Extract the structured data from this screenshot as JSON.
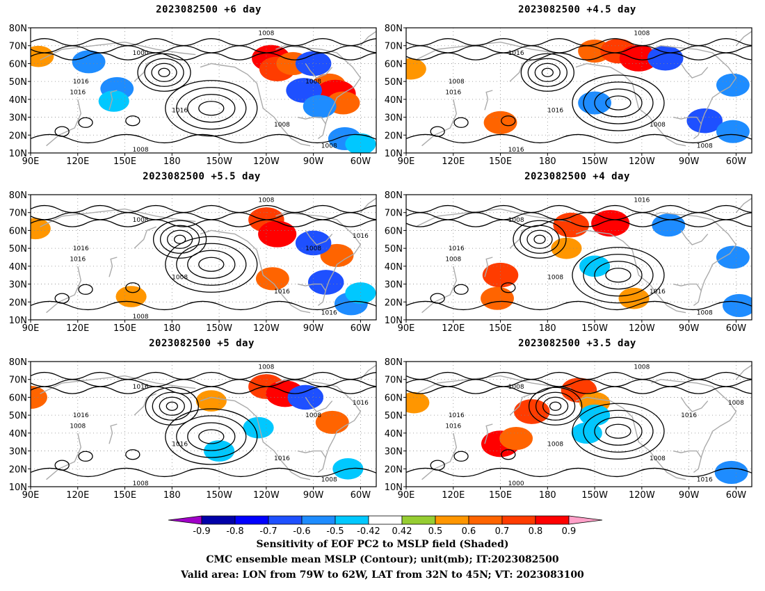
{
  "panels": [
    {
      "title": "2023082500  +6 day",
      "lead": "+6 day",
      "isobars": [
        "1008",
        "1000",
        "1016",
        "1016",
        "1016",
        "1008",
        "1008",
        "1008",
        "1008"
      ],
      "shading": [
        {
          "lon": -117,
          "lat": 63,
          "v": 0.8
        },
        {
          "lon": -113,
          "lat": 57,
          "v": 0.7
        },
        {
          "lon": -103,
          "lat": 60,
          "v": 0.6
        },
        {
          "lon": -80,
          "lat": 48,
          "v": 0.6
        },
        {
          "lon": -76,
          "lat": 43,
          "v": 0.9
        },
        {
          "lon": -71,
          "lat": 38,
          "v": 0.6
        },
        {
          "lon": -96,
          "lat": 45,
          "v": -0.7
        },
        {
          "lon": -90,
          "lat": 60,
          "v": -0.7
        },
        {
          "lon": -86,
          "lat": 36,
          "v": -0.6
        },
        {
          "lon": -70,
          "lat": 18,
          "v": -0.6
        },
        {
          "lon": -60,
          "lat": 15,
          "v": -0.5
        },
        {
          "lon": 145,
          "lat": 46,
          "v": -0.6
        },
        {
          "lon": 127,
          "lat": 61,
          "v": -0.6
        },
        {
          "lon": 143,
          "lat": 39,
          "v": -0.5
        },
        {
          "lon": 95,
          "lat": 64,
          "v": 0.5
        }
      ]
    },
    {
      "title": "2023082500  +4.5 day",
      "lead": "+4.5 day",
      "isobars": [
        "1008",
        "1016",
        "1008",
        "1016",
        "1016",
        "1008",
        "1008",
        "1016"
      ],
      "shading": [
        {
          "lon": -150,
          "lat": 67,
          "v": 0.6
        },
        {
          "lon": -135,
          "lat": 67,
          "v": 0.7
        },
        {
          "lon": -122,
          "lat": 63,
          "v": 0.8
        },
        {
          "lon": -105,
          "lat": 63,
          "v": -0.7
        },
        {
          "lon": 150,
          "lat": 27,
          "v": 0.6
        },
        {
          "lon": -150,
          "lat": 38,
          "v": -0.6
        },
        {
          "lon": -80,
          "lat": 28,
          "v": -0.7
        },
        {
          "lon": -62,
          "lat": 22,
          "v": -0.6
        },
        {
          "lon": -62,
          "lat": 48,
          "v": -0.6
        },
        {
          "lon": 93,
          "lat": 57,
          "v": 0.5
        }
      ]
    },
    {
      "title": "2023082500  +5.5 day",
      "lead": "+5.5 day",
      "isobars": [
        "1008",
        "1008",
        "1016",
        "1016",
        "1008",
        "1016",
        "1016",
        "1008",
        "1008",
        "1016"
      ],
      "shading": [
        {
          "lon": -120,
          "lat": 66,
          "v": 0.7
        },
        {
          "lon": -113,
          "lat": 58,
          "v": 0.8
        },
        {
          "lon": -75,
          "lat": 46,
          "v": 0.6
        },
        {
          "lon": -90,
          "lat": 53,
          "v": -0.7
        },
        {
          "lon": -82,
          "lat": 31,
          "v": -0.7
        },
        {
          "lon": -66,
          "lat": 19,
          "v": -0.6
        },
        {
          "lon": -60,
          "lat": 25,
          "v": -0.5
        },
        {
          "lon": -116,
          "lat": 33,
          "v": 0.6
        },
        {
          "lon": 93,
          "lat": 61,
          "v": 0.5
        },
        {
          "lon": 154,
          "lat": 23,
          "v": 0.5
        }
      ]
    },
    {
      "title": "2023082500  +4 day",
      "lead": "+4 day",
      "isobars": [
        "1016",
        "1008",
        "1016",
        "1008",
        "1008",
        "1016",
        "1008"
      ],
      "shading": [
        {
          "lon": -165,
          "lat": 63,
          "v": 0.7
        },
        {
          "lon": -140,
          "lat": 64,
          "v": 0.8
        },
        {
          "lon": 150,
          "lat": 35,
          "v": 0.7
        },
        {
          "lon": 148,
          "lat": 22,
          "v": 0.6
        },
        {
          "lon": -103,
          "lat": 63,
          "v": -0.6
        },
        {
          "lon": -150,
          "lat": 40,
          "v": -0.5
        },
        {
          "lon": -62,
          "lat": 45,
          "v": -0.6
        },
        {
          "lon": -58,
          "lat": 18,
          "v": -0.6
        },
        {
          "lon": -168,
          "lat": 50,
          "v": 0.5
        },
        {
          "lon": -125,
          "lat": 22,
          "v": 0.5
        }
      ]
    },
    {
      "title": "2023082500  +5 day",
      "lead": "+5 day",
      "isobars": [
        "1008",
        "1016",
        "1016",
        "1008",
        "1016",
        "1016",
        "1008",
        "1008",
        "1008",
        "1016"
      ],
      "shading": [
        {
          "lon": -120,
          "lat": 66,
          "v": 0.7
        },
        {
          "lon": -108,
          "lat": 62,
          "v": 0.8
        },
        {
          "lon": -95,
          "lat": 60,
          "v": -0.7
        },
        {
          "lon": -78,
          "lat": 46,
          "v": 0.6
        },
        {
          "lon": -150,
          "lat": 30,
          "v": -0.5
        },
        {
          "lon": -125,
          "lat": 43,
          "v": -0.5
        },
        {
          "lon": -68,
          "lat": 20,
          "v": -0.5
        },
        {
          "lon": 90,
          "lat": 60,
          "v": 0.6
        },
        {
          "lon": -155,
          "lat": 58,
          "v": 0.5
        }
      ]
    },
    {
      "title": "2023082500  +3.5 day",
      "lead": "+3.5 day",
      "isobars": [
        "1008",
        "1008",
        "1016",
        "1016",
        "1008",
        "1008",
        "1016",
        "1000",
        "1016",
        "1008"
      ],
      "shading": [
        {
          "lon": 150,
          "lat": 34,
          "v": 0.8
        },
        {
          "lon": 160,
          "lat": 37,
          "v": 0.6
        },
        {
          "lon": 170,
          "lat": 52,
          "v": 0.7
        },
        {
          "lon": -160,
          "lat": 64,
          "v": 0.7
        },
        {
          "lon": -150,
          "lat": 57,
          "v": 0.5
        },
        {
          "lon": 95,
          "lat": 57,
          "v": 0.5
        },
        {
          "lon": -155,
          "lat": 40,
          "v": -0.5
        },
        {
          "lon": -63,
          "lat": 18,
          "v": -0.6
        },
        {
          "lon": -150,
          "lat": 50,
          "v": -0.5
        }
      ]
    }
  ],
  "axes": {
    "lat_labels": [
      "80N",
      "70N",
      "60N",
      "50N",
      "40N",
      "30N",
      "20N",
      "10N"
    ],
    "lat_values": [
      80,
      70,
      60,
      50,
      40,
      30,
      20,
      10
    ],
    "lon_labels": [
      "90E",
      "120E",
      "150E",
      "180",
      "150W",
      "120W",
      "90W",
      "60W"
    ],
    "lon_values": [
      90,
      120,
      150,
      180,
      210,
      240,
      270,
      300
    ],
    "lon_range": [
      90,
      310
    ],
    "lat_range": [
      10,
      80
    ]
  },
  "colorbar": {
    "labels": [
      "-0.9",
      "-0.8",
      "-0.7",
      "-0.6",
      "-0.5",
      "-0.42",
      "0.42",
      "0.5",
      "0.6",
      "0.7",
      "0.8",
      "0.9"
    ],
    "colors": [
      "#0000a8",
      "#0000ff",
      "#1e50ff",
      "#1e8cff",
      "#00c8ff",
      "#ffffff",
      "#96cd32",
      "#ff9600",
      "#ff6400",
      "#ff3c00",
      "#ff0000"
    ],
    "min_extend_color": "#a000c8",
    "max_extend_color": "#ffa0c8"
  },
  "caption": {
    "line1": "Sensitivity of EOF PC2 to MSLP field (Shaded)",
    "line2": "CMC ensemble mean MSLP (Contour); unit(mb); IT:2023082500",
    "line3": "Valid area: LON from 79W to 62W, LAT from 32N to 45N; VT: 2023083100"
  }
}
